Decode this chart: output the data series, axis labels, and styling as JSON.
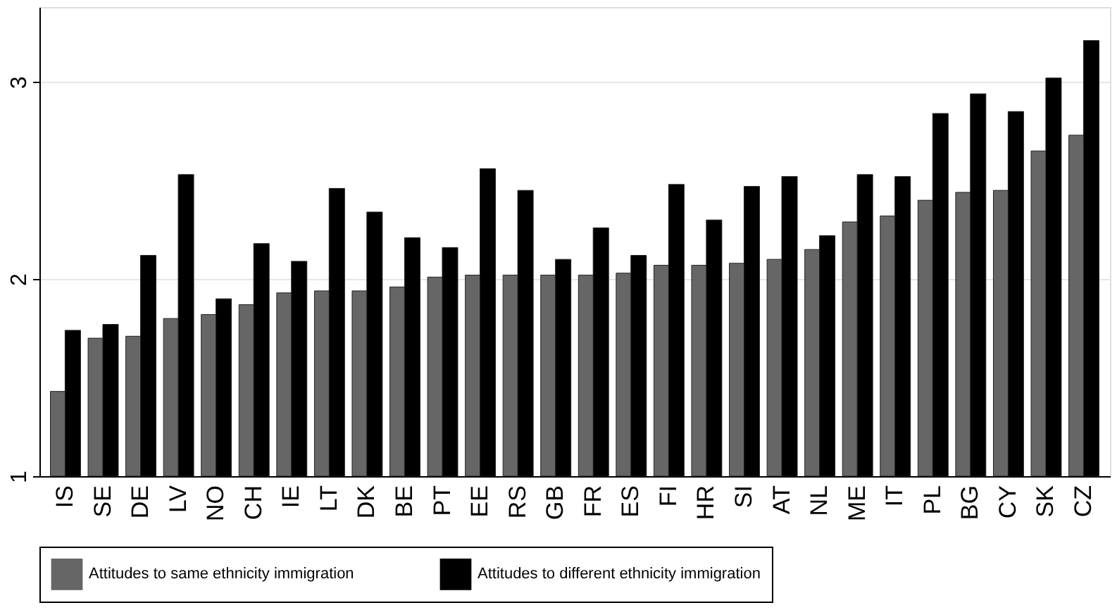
{
  "chart_data": {
    "type": "bar",
    "categories": [
      "IS",
      "SE",
      "DE",
      "LV",
      "NO",
      "CH",
      "IE",
      "LT",
      "DK",
      "BE",
      "PT",
      "EE",
      "RS",
      "GB",
      "FR",
      "ES",
      "FI",
      "HR",
      "SI",
      "AT",
      "NL",
      "ME",
      "IT",
      "PL",
      "BG",
      "CY",
      "SK",
      "CZ"
    ],
    "series": [
      {
        "name": "Attitudes to same ethnicity immigration",
        "color": "#666666",
        "values": [
          1.43,
          1.7,
          1.71,
          1.8,
          1.82,
          1.87,
          1.93,
          1.94,
          1.94,
          1.96,
          2.01,
          2.02,
          2.02,
          2.02,
          2.02,
          2.03,
          2.07,
          2.07,
          2.08,
          2.1,
          2.15,
          2.29,
          2.32,
          2.4,
          2.44,
          2.45,
          2.65,
          2.73
        ]
      },
      {
        "name": "Attitudes to different ethnicity immigration",
        "color": "#000000",
        "values": [
          1.74,
          1.77,
          2.12,
          2.53,
          1.9,
          2.18,
          2.09,
          2.46,
          2.34,
          2.21,
          2.16,
          2.56,
          2.45,
          2.1,
          2.26,
          2.12,
          2.48,
          2.3,
          2.47,
          2.52,
          2.22,
          2.53,
          2.52,
          2.84,
          2.94,
          2.85,
          3.02,
          3.21
        ]
      }
    ],
    "ylim": [
      1,
      3.38
    ],
    "yticks": [
      1,
      2,
      3
    ],
    "grid": "y",
    "legend": "bottom"
  }
}
